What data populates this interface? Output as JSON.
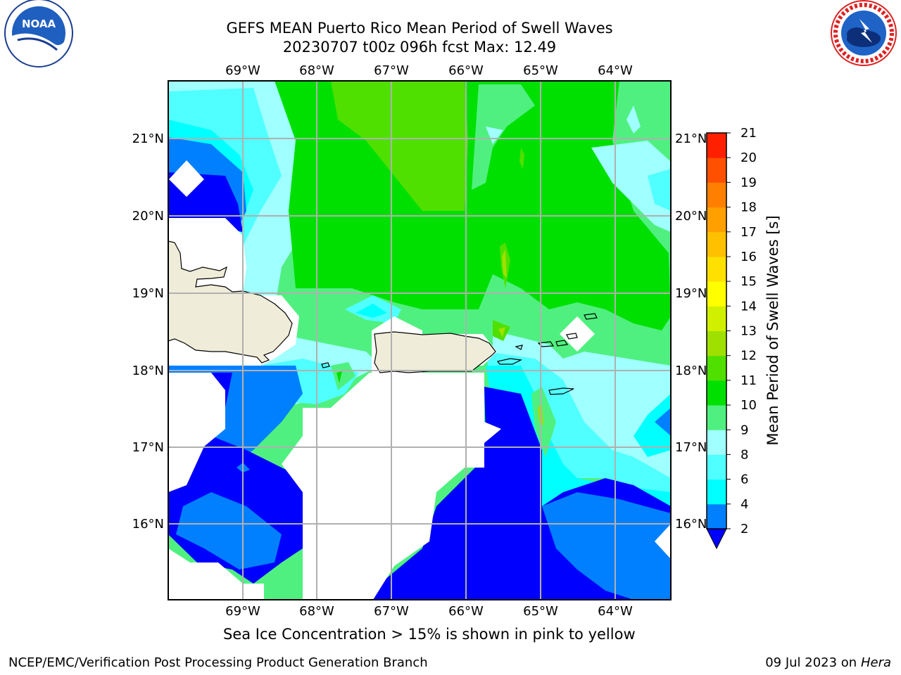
{
  "title": {
    "line1": "GEFS MEAN Puerto Rico Mean Period of Swell Waves",
    "line2": "20230707 t00z 096h fcst   Max: 12.49"
  },
  "map": {
    "lon_labels": [
      "69°W",
      "68°W",
      "67°W",
      "66°W",
      "65°W",
      "64°W"
    ],
    "lat_labels": [
      "21°N",
      "20°N",
      "19°N",
      "18°N",
      "17°N",
      "16°N"
    ],
    "lon_values": [
      -69,
      -68,
      -67,
      -66,
      -65,
      -64
    ],
    "lat_values": [
      21,
      20,
      19,
      18,
      17,
      16
    ],
    "extent": {
      "lon_min": -70,
      "lon_max": -63.25,
      "lat_min": 15,
      "lat_max": 21.75
    },
    "gridlines": true,
    "land_color": "#efedd9",
    "no_data_color": "#ffffff"
  },
  "colorbar": {
    "title": "Mean Period of Swell Waves [s]",
    "ticks": [
      "2",
      "4",
      "6",
      "8",
      "9",
      "10",
      "11",
      "12",
      "13",
      "14",
      "15",
      "16",
      "17",
      "18",
      "19",
      "20",
      "21"
    ],
    "colors": [
      "#0000ff",
      "#0080ff",
      "#00ffff",
      "#50ffff",
      "#a0ffff",
      "#50f080",
      "#00e000",
      "#50e000",
      "#a0e000",
      "#d0f000",
      "#ffff00",
      "#ffe000",
      "#ffc000",
      "#ffa000",
      "#ff8000",
      "#ff5000",
      "#ff2000",
      "#ff0000"
    ],
    "extend": "min"
  },
  "notes": {
    "sea_ice": "Sea Ice Concentration > 15% is shown in pink to yellow"
  },
  "footer": {
    "left": "NCEP/EMC/Verification Post Processing Product Generation Branch",
    "right_date": "09 Jul 2023 on ",
    "right_host": "Hera"
  },
  "logos": {
    "left": "noaa-logo",
    "right": "nws-logo",
    "noaa_text": "NOAA",
    "nws_ring": "NATIONAL WEATHER SERVICE"
  }
}
